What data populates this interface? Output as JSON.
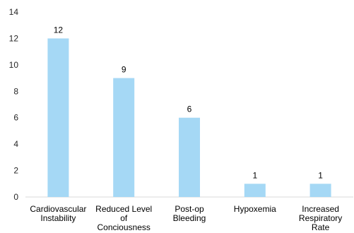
{
  "chart_data": {
    "type": "bar",
    "categories": [
      [
        "Cardiovascular",
        "Instability"
      ],
      [
        "Reduced Level",
        "of",
        "Conciousness"
      ],
      [
        "Post-op",
        "Bleeding"
      ],
      [
        "Hypoxemia"
      ],
      [
        "Increased",
        "Respiratory",
        "Rate"
      ]
    ],
    "values": [
      12,
      9,
      6,
      1,
      1
    ],
    "data_labels": [
      "12",
      "9",
      "6",
      "1",
      "1"
    ],
    "y_ticks": [
      "0",
      "2",
      "4",
      "6",
      "8",
      "10",
      "12",
      "14"
    ],
    "ylim": [
      0,
      14
    ],
    "title": "",
    "xlabel": "",
    "ylabel": "",
    "grid": false,
    "legend": "none",
    "colors": {
      "bar": "#a5d8f5",
      "axis": "#d9d9d9",
      "text": "#262626"
    }
  }
}
